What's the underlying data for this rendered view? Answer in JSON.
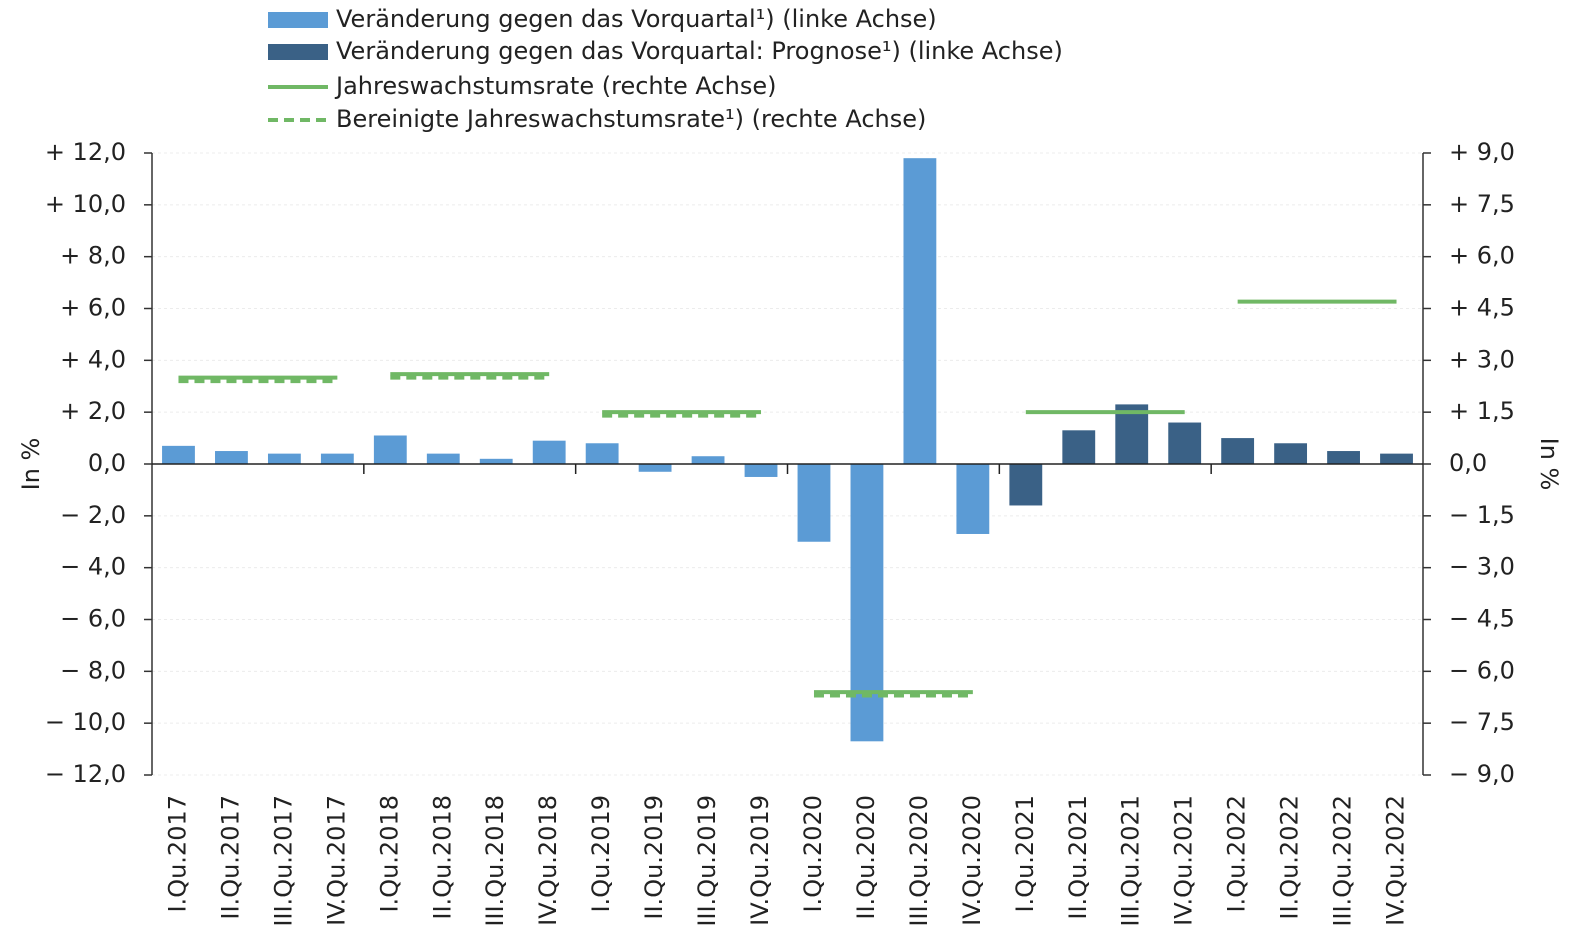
{
  "chart_data": {
    "type": "bar",
    "categories": [
      "I.Qu.2017",
      "II.Qu.2017",
      "III.Qu.2017",
      "IV.Qu.2017",
      "I.Qu.2018",
      "II.Qu.2018",
      "III.Qu.2018",
      "IV.Qu.2018",
      "I.Qu.2019",
      "II.Qu.2019",
      "III.Qu.2019",
      "IV.Qu.2019",
      "I.Qu.2020",
      "II.Qu.2020",
      "III.Qu.2020",
      "IV.Qu.2020",
      "I.Qu.2021",
      "II.Qu.2021",
      "III.Qu.2021",
      "IV.Qu.2021",
      "I.Qu.2022",
      "II.Qu.2022",
      "III.Qu.2022",
      "IV.Qu.2022"
    ],
    "series": [
      {
        "name": "Veränderung gegen das Vorquartal¹)  (linke Achse)",
        "type": "bar",
        "color": "#5b9bd5",
        "values": [
          0.7,
          0.5,
          0.4,
          0.4,
          1.1,
          0.4,
          0.2,
          0.9,
          0.8,
          -0.3,
          0.3,
          -0.5,
          -3.0,
          -10.7,
          11.8,
          -2.7,
          null,
          null,
          null,
          null,
          null,
          null,
          null,
          null
        ]
      },
      {
        "name": "Veränderung gegen das Vorquartal: Prognose¹) (linke Achse)",
        "type": "bar",
        "color": "#3a6186",
        "values": [
          null,
          null,
          null,
          null,
          null,
          null,
          null,
          null,
          null,
          null,
          null,
          null,
          null,
          null,
          null,
          null,
          -1.6,
          1.3,
          2.3,
          1.6,
          1.0,
          0.8,
          0.5,
          0.4
        ]
      },
      {
        "name": "Jahreswachstumsrate (rechte Achse)",
        "type": "line",
        "axis": "y2",
        "color": "#70b865",
        "dashed": false,
        "values": [
          2.5,
          2.5,
          2.5,
          2.5,
          2.6,
          2.6,
          2.6,
          2.6,
          1.5,
          1.5,
          1.5,
          1.5,
          -6.6,
          -6.6,
          -6.6,
          -6.6,
          1.5,
          1.5,
          1.5,
          1.5,
          4.7,
          4.7,
          4.7,
          4.7
        ]
      },
      {
        "name": "Bereinigte Jahreswachstumsrate¹)  (rechte Achse)",
        "type": "line",
        "axis": "y2",
        "color": "#70b865",
        "dashed": true,
        "values": [
          2.4,
          2.4,
          2.4,
          2.4,
          2.5,
          2.5,
          2.5,
          2.5,
          1.4,
          1.4,
          1.4,
          1.4,
          -6.7,
          -6.7,
          -6.7,
          -6.7,
          null,
          null,
          null,
          null,
          null,
          null,
          null,
          null
        ]
      }
    ],
    "y_label": "In %",
    "y2_label": "In %",
    "ylim": [
      -12,
      12
    ],
    "yticks": [
      {
        "value": -12,
        "label": "− 12,0"
      },
      {
        "value": -10,
        "label": "− 10,0"
      },
      {
        "value": -8,
        "label": "− 8,0"
      },
      {
        "value": -6,
        "label": "− 6,0"
      },
      {
        "value": -4,
        "label": "− 4,0"
      },
      {
        "value": -2,
        "label": "− 2,0"
      },
      {
        "value": 0,
        "label": "0,0"
      },
      {
        "value": 2,
        "label": "+ 2,0"
      },
      {
        "value": 4,
        "label": "+ 4,0"
      },
      {
        "value": 6,
        "label": "+ 6,0"
      },
      {
        "value": 8,
        "label": "+ 8,0"
      },
      {
        "value": 10,
        "label": "+ 10,0"
      },
      {
        "value": 12,
        "label": "+ 12,0"
      }
    ],
    "y2lim": [
      -9,
      9
    ],
    "y2ticks": [
      {
        "value": -9,
        "label": "− 9,0"
      },
      {
        "value": -7.5,
        "label": "− 7,5"
      },
      {
        "value": -6,
        "label": "− 6,0"
      },
      {
        "value": -4.5,
        "label": "− 4,5"
      },
      {
        "value": -3,
        "label": "− 3,0"
      },
      {
        "value": -1.5,
        "label": "− 1,5"
      },
      {
        "value": 0,
        "label": "0,0"
      },
      {
        "value": 1.5,
        "label": "+ 1,5"
      },
      {
        "value": 3,
        "label": "+ 3,0"
      },
      {
        "value": 4.5,
        "label": "+ 4,5"
      },
      {
        "value": 6,
        "label": "+ 6,0"
      },
      {
        "value": 7.5,
        "label": "+ 7,5"
      },
      {
        "value": 9,
        "label": "+ 9,0"
      }
    ],
    "grid": true
  }
}
